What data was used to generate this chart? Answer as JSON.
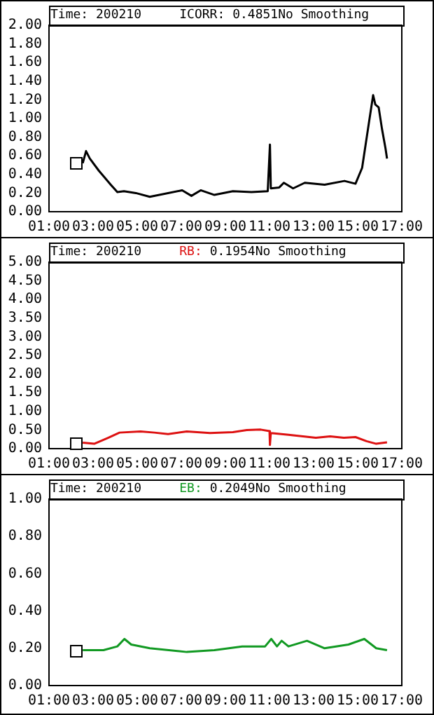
{
  "chart_data": [
    {
      "type": "line",
      "title": "Time: 200210",
      "annotations": [
        "0.4851No Smoothing"
      ],
      "x": [
        2.53,
        2.68,
        2.85,
        3.26,
        3.8,
        4.1,
        4.4,
        4.94,
        5.57,
        6.2,
        7.04,
        7.46,
        7.88,
        8.5,
        9.34,
        10.18,
        10.92,
        11.02,
        11.06,
        11.44,
        11.65,
        12.07,
        12.6,
        13.5,
        14.4,
        14.9,
        15.2,
        15.5,
        15.7,
        15.8,
        15.95,
        16.1,
        16.26,
        16.33
      ],
      "series": [
        {
          "name": "ICORR:",
          "color": "#000000",
          "values": [
            0.52,
            0.65,
            0.57,
            0.44,
            0.29,
            0.21,
            0.22,
            0.2,
            0.16,
            0.19,
            0.23,
            0.17,
            0.23,
            0.18,
            0.22,
            0.21,
            0.22,
            0.72,
            0.25,
            0.26,
            0.31,
            0.25,
            0.31,
            0.29,
            0.33,
            0.3,
            0.47,
            0.94,
            1.25,
            1.15,
            1.12,
            0.89,
            0.68,
            0.57
          ]
        }
      ],
      "xlim": [
        1,
        17
      ],
      "xticks": [
        {
          "value": 1,
          "label": "01:00"
        },
        {
          "value": 3,
          "label": "03:00"
        },
        {
          "value": 5,
          "label": "05:00"
        },
        {
          "value": 7,
          "label": "07:00"
        },
        {
          "value": 9,
          "label": "09:00"
        },
        {
          "value": 11,
          "label": "11:00"
        },
        {
          "value": 13,
          "label": "13:00"
        },
        {
          "value": 15,
          "label": "15:00"
        },
        {
          "value": 17,
          "label": "17:00"
        }
      ],
      "ylim": [
        0,
        2
      ],
      "yticks": [
        {
          "value": 0,
          "label": "0.00"
        },
        {
          "value": 0.2,
          "label": "0.20"
        },
        {
          "value": 0.4,
          "label": "0.40"
        },
        {
          "value": 0.6,
          "label": "0.60"
        },
        {
          "value": 0.8,
          "label": "0.80"
        },
        {
          "value": 1,
          "label": "1.00"
        },
        {
          "value": 1.2,
          "label": "1.20"
        },
        {
          "value": 1.4,
          "label": "1.40"
        },
        {
          "value": 1.6,
          "label": "1.60"
        },
        {
          "value": 1.8,
          "label": "1.80"
        },
        {
          "value": 2,
          "label": "2.00"
        }
      ],
      "grid": false,
      "legend": false,
      "marker": "none",
      "line_style": "solid"
    },
    {
      "type": "line",
      "title": "Time: 200210",
      "annotations": [
        "0.1954No Smoothing"
      ],
      "x": [
        2.53,
        3.05,
        3.68,
        4.2,
        5.15,
        5.78,
        6.4,
        7.25,
        8.3,
        9.34,
        9.97,
        10.6,
        11,
        11.02,
        11.06,
        11.86,
        13.1,
        13.75,
        14.37,
        14.9,
        15.4,
        15.84,
        16.33
      ],
      "series": [
        {
          "name": "RB:",
          "color": "#dd1111",
          "values": [
            0.16,
            0.13,
            0.29,
            0.43,
            0.46,
            0.43,
            0.39,
            0.46,
            0.42,
            0.44,
            0.5,
            0.51,
            0.47,
            0.1,
            0.42,
            0.37,
            0.29,
            0.33,
            0.29,
            0.31,
            0.2,
            0.13,
            0.17
          ]
        }
      ],
      "xlim": [
        1,
        17
      ],
      "xticks": [
        {
          "value": 1,
          "label": "01:00"
        },
        {
          "value": 3,
          "label": "03:00"
        },
        {
          "value": 5,
          "label": "05:00"
        },
        {
          "value": 7,
          "label": "07:00"
        },
        {
          "value": 9,
          "label": "09:00"
        },
        {
          "value": 11,
          "label": "11:00"
        },
        {
          "value": 13,
          "label": "13:00"
        },
        {
          "value": 15,
          "label": "15:00"
        },
        {
          "value": 17,
          "label": "17:00"
        }
      ],
      "ylim": [
        0,
        5
      ],
      "yticks": [
        {
          "value": 0,
          "label": "0.00"
        },
        {
          "value": 0.5,
          "label": "0.50"
        },
        {
          "value": 1,
          "label": "1.00"
        },
        {
          "value": 1.5,
          "label": "1.50"
        },
        {
          "value": 2,
          "label": "2.00"
        },
        {
          "value": 2.5,
          "label": "2.50"
        },
        {
          "value": 3,
          "label": "3.00"
        },
        {
          "value": 3.5,
          "label": "3.50"
        },
        {
          "value": 4,
          "label": "4.00"
        },
        {
          "value": 4.5,
          "label": "4.50"
        },
        {
          "value": 5,
          "label": "5.00"
        }
      ],
      "grid": false,
      "legend": false,
      "marker": "none",
      "line_style": "solid"
    },
    {
      "type": "line",
      "title": "Time: 200210",
      "annotations": [
        "0.2049No Smoothing"
      ],
      "x": [
        2.53,
        3.47,
        4.1,
        4.42,
        4.73,
        5.57,
        7.25,
        8.5,
        9.76,
        10.8,
        11.08,
        11.34,
        11.55,
        11.86,
        12.7,
        13.5,
        14.58,
        15.3,
        15.84,
        16.33
      ],
      "series": [
        {
          "name": "EB:",
          "color": "#119922",
          "values": [
            0.19,
            0.19,
            0.21,
            0.25,
            0.22,
            0.2,
            0.18,
            0.19,
            0.21,
            0.21,
            0.25,
            0.21,
            0.24,
            0.21,
            0.24,
            0.2,
            0.22,
            0.25,
            0.2,
            0.19
          ]
        }
      ],
      "xlim": [
        1,
        17
      ],
      "xticks": [
        {
          "value": 1,
          "label": "01:00"
        },
        {
          "value": 3,
          "label": "03:00"
        },
        {
          "value": 5,
          "label": "05:00"
        },
        {
          "value": 7,
          "label": "07:00"
        },
        {
          "value": 9,
          "label": "09:00"
        },
        {
          "value": 11,
          "label": "11:00"
        },
        {
          "value": 13,
          "label": "13:00"
        },
        {
          "value": 15,
          "label": "15:00"
        },
        {
          "value": 17,
          "label": "17:00"
        }
      ],
      "ylim": [
        0,
        1
      ],
      "yticks": [
        {
          "value": 0,
          "label": "0.00"
        },
        {
          "value": 0.2,
          "label": "0.20"
        },
        {
          "value": 0.4,
          "label": "0.40"
        },
        {
          "value": 0.6,
          "label": "0.60"
        },
        {
          "value": 0.8,
          "label": "0.80"
        },
        {
          "value": 1,
          "label": "1.00"
        }
      ],
      "grid": false,
      "legend": false,
      "marker": "none",
      "line_style": "solid"
    }
  ]
}
